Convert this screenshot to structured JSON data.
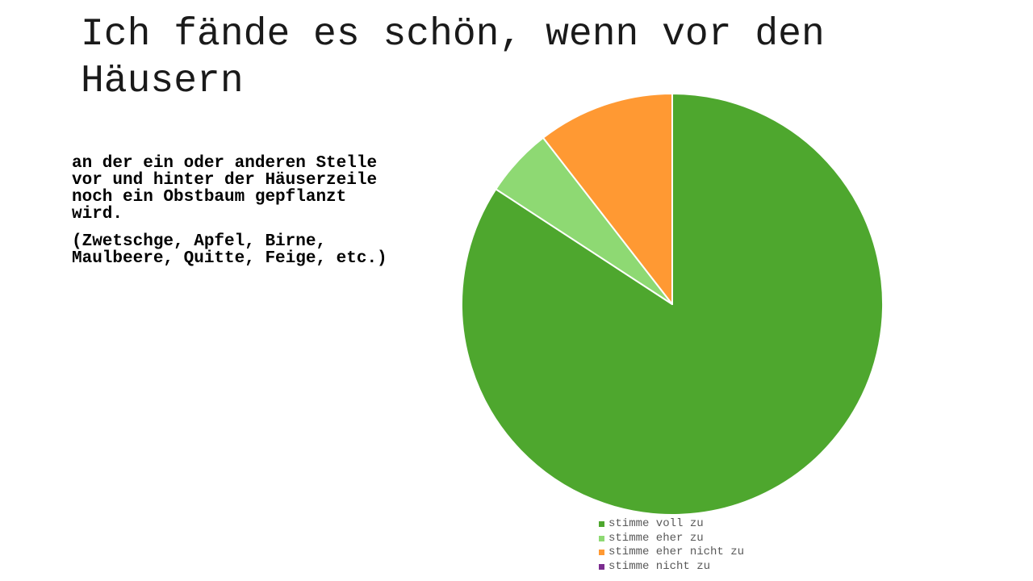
{
  "slide": {
    "title": "Ich fände es schön, wenn vor den Häusern",
    "paragraphs": [
      "an der ein oder anderen Stelle vor und hinter der Häuserzeile noch ein Obstbaum gepflanzt wird.",
      "(Zwetschge, Apfel, Birne, Maulbeere, Quitte, Feige, etc.)"
    ]
  },
  "chart_data": {
    "type": "pie",
    "title": "",
    "start_angle": "12 o'clock, clockwise",
    "slice_border_color": "#ffffff",
    "legend_position": "bottom",
    "categories": [
      "stimme voll zu",
      "stimme eher zu",
      "stimme eher nicht zu",
      "stimme nicht zu"
    ],
    "values": [
      84.2,
      5.3,
      10.5,
      0
    ],
    "colors": [
      "#4ea72e",
      "#8ed973",
      "#ff9933",
      "#7b2c8f"
    ]
  }
}
